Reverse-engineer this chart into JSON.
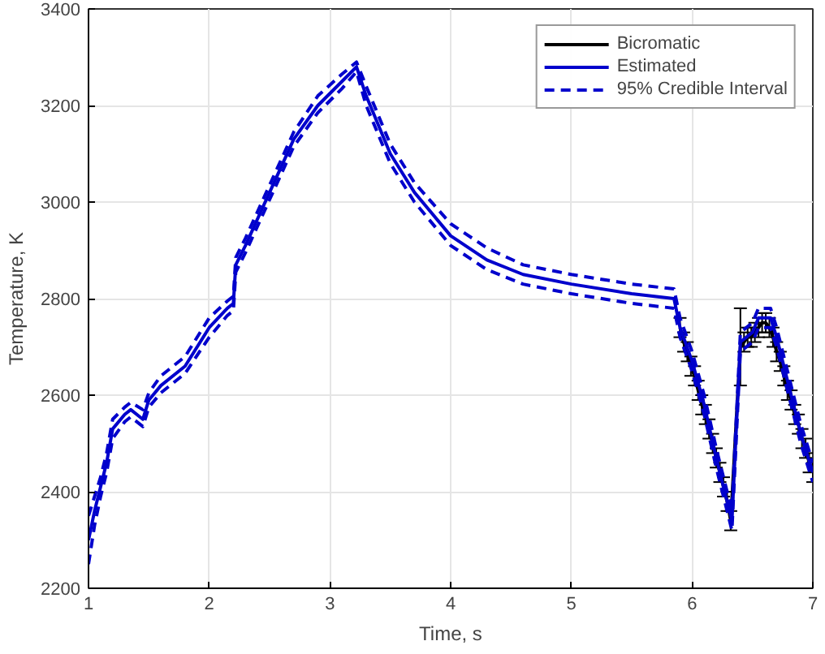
{
  "chart_data": {
    "type": "line",
    "xlabel": "Time, s",
    "ylabel": "Temperature, K",
    "xlim": [
      1,
      7
    ],
    "ylim": [
      2200,
      3400
    ],
    "xticks": [
      1,
      2,
      3,
      4,
      5,
      6,
      7
    ],
    "yticks": [
      2200,
      2400,
      2600,
      2800,
      3000,
      3200,
      3400
    ],
    "grid": true,
    "legend": "top right",
    "series": [
      {
        "name": "Bicromatic",
        "color": "#000000",
        "x": [
          5.9,
          5.93,
          5.96,
          5.99,
          6.02,
          6.05,
          6.08,
          6.11,
          6.14,
          6.17,
          6.2,
          6.23,
          6.26,
          6.29,
          6.32,
          6.4,
          6.43,
          6.46,
          6.49,
          6.52,
          6.55,
          6.58,
          6.61,
          6.64,
          6.67,
          6.7,
          6.73,
          6.76,
          6.79,
          6.82,
          6.85,
          6.88,
          6.91,
          6.94,
          6.97,
          7.0
        ],
        "values": [
          2740,
          2710,
          2690,
          2660,
          2640,
          2610,
          2580,
          2560,
          2530,
          2500,
          2470,
          2440,
          2410,
          2380,
          2340,
          2700,
          2710,
          2720,
          2720,
          2730,
          2740,
          2750,
          2750,
          2740,
          2720,
          2690,
          2670,
          2640,
          2610,
          2590,
          2560,
          2540,
          2510,
          2490,
          2460,
          2440
        ],
        "errors": [
          20,
          20,
          20,
          20,
          20,
          20,
          20,
          20,
          20,
          20,
          20,
          20,
          20,
          20,
          20,
          80,
          20,
          20,
          20,
          20,
          20,
          20,
          20,
          20,
          20,
          20,
          20,
          20,
          20,
          20,
          20,
          20,
          20,
          20,
          20,
          20
        ]
      },
      {
        "name": "Estimated",
        "color": "#0000cc",
        "line_style": "solid",
        "x": [
          1.0,
          1.05,
          1.1,
          1.15,
          1.2,
          1.3,
          1.35,
          1.45,
          1.5,
          1.6,
          1.8,
          2.0,
          2.15,
          2.2,
          2.22,
          2.3,
          2.5,
          2.7,
          2.9,
          3.1,
          3.22,
          3.3,
          3.5,
          3.7,
          4.0,
          4.3,
          4.6,
          5.0,
          5.5,
          5.85,
          5.9,
          6.0,
          6.1,
          6.2,
          6.3,
          6.33,
          6.4,
          6.5,
          6.55,
          6.65,
          6.7,
          6.8,
          6.9,
          7.0
        ],
        "values": [
          2300,
          2360,
          2410,
          2460,
          2530,
          2560,
          2570,
          2550,
          2590,
          2620,
          2660,
          2740,
          2780,
          2790,
          2870,
          2910,
          3020,
          3130,
          3200,
          3250,
          3280,
          3220,
          3100,
          3020,
          2930,
          2880,
          2850,
          2830,
          2810,
          2800,
          2740,
          2670,
          2580,
          2470,
          2370,
          2340,
          2710,
          2730,
          2760,
          2760,
          2720,
          2620,
          2520,
          2440
        ]
      },
      {
        "name": "95% Credible Interval",
        "color": "#0000cc",
        "line_style": "dashed",
        "x": [
          1.0,
          1.05,
          1.1,
          1.15,
          1.2,
          1.3,
          1.35,
          1.45,
          1.5,
          1.6,
          1.8,
          2.0,
          2.15,
          2.2,
          2.22,
          2.3,
          2.5,
          2.7,
          2.9,
          3.1,
          3.22,
          3.3,
          3.5,
          3.7,
          4.0,
          4.3,
          4.6,
          5.0,
          5.5,
          5.85,
          5.9,
          6.0,
          6.1,
          6.2,
          6.3,
          6.33,
          6.4,
          6.5,
          6.55,
          6.65,
          6.7,
          6.8,
          6.9,
          7.0
        ],
        "values": [
          2350,
          2390,
          2430,
          2480,
          2550,
          2575,
          2585,
          2570,
          2605,
          2640,
          2680,
          2760,
          2795,
          2805,
          2885,
          2925,
          3035,
          3145,
          3220,
          3265,
          3290,
          3240,
          3120,
          3040,
          2955,
          2905,
          2870,
          2850,
          2830,
          2820,
          2760,
          2690,
          2600,
          2490,
          2390,
          2360,
          2730,
          2750,
          2780,
          2780,
          2740,
          2640,
          2540,
          2460
        ]
      },
      {
        "color": "#0000cc",
        "line_style": "dashed",
        "x": [
          1.0,
          1.05,
          1.1,
          1.15,
          1.2,
          1.3,
          1.35,
          1.45,
          1.5,
          1.6,
          1.8,
          2.0,
          2.15,
          2.2,
          2.22,
          2.3,
          2.5,
          2.7,
          2.9,
          3.1,
          3.22,
          3.3,
          3.5,
          3.7,
          4.0,
          4.3,
          4.6,
          5.0,
          5.5,
          5.85,
          5.9,
          6.0,
          6.1,
          6.2,
          6.3,
          6.33,
          6.4,
          6.5,
          6.55,
          6.65,
          6.7,
          6.8,
          6.9,
          7.0
        ],
        "values": [
          2250,
          2330,
          2390,
          2440,
          2510,
          2545,
          2555,
          2535,
          2575,
          2605,
          2645,
          2720,
          2765,
          2775,
          2855,
          2895,
          3005,
          3115,
          3185,
          3235,
          3270,
          3200,
          3080,
          3000,
          2910,
          2860,
          2830,
          2810,
          2790,
          2780,
          2720,
          2650,
          2560,
          2450,
          2350,
          2320,
          2690,
          2710,
          2740,
          2740,
          2700,
          2600,
          2500,
          2420
        ]
      }
    ]
  }
}
